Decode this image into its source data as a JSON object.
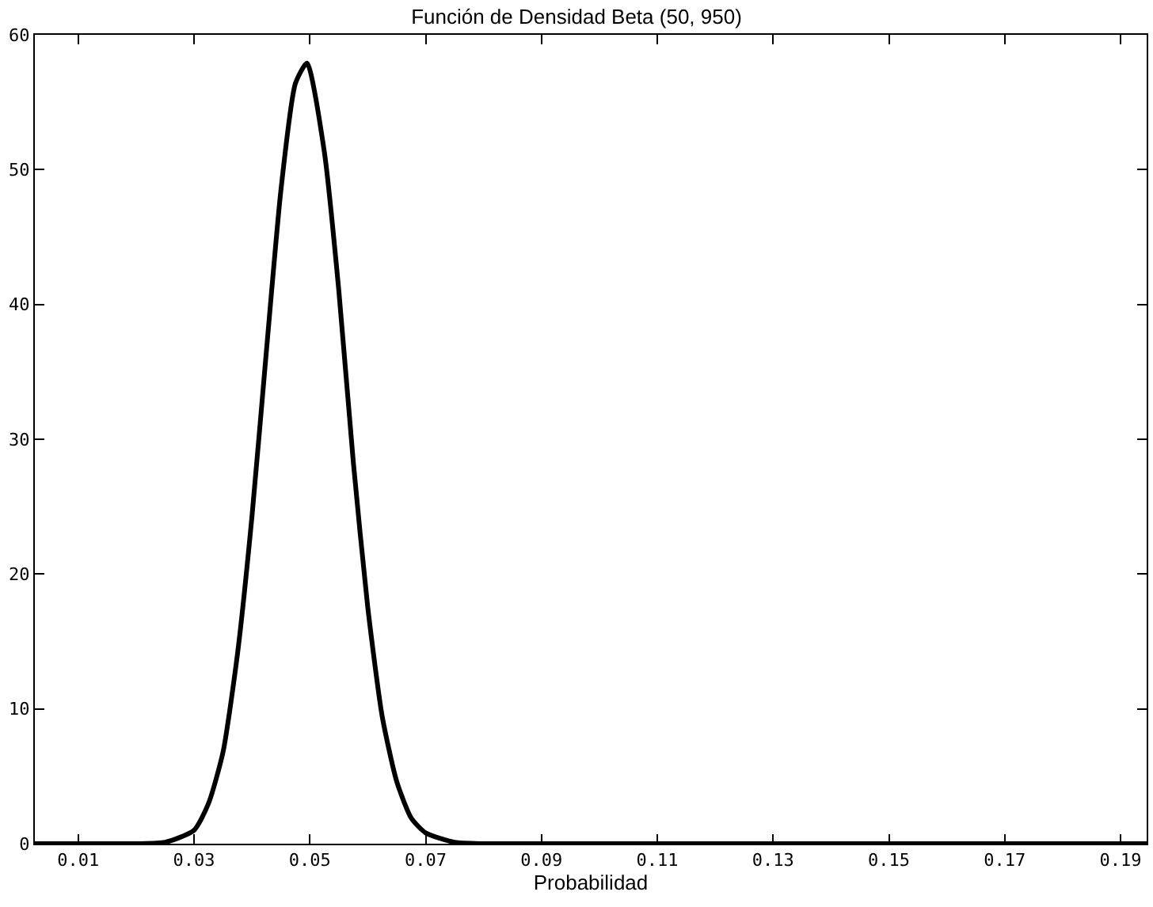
{
  "chart_data": {
    "type": "line",
    "title": "Función de Densidad Beta (50, 950)",
    "xlabel": "Probabilidad",
    "x": [
      0.0025,
      0.01,
      0.02,
      0.025,
      0.03,
      0.0325,
      0.035,
      0.0375,
      0.04,
      0.0425,
      0.045,
      0.0475,
      0.0495,
      0.0525,
      0.055,
      0.0575,
      0.06,
      0.0625,
      0.065,
      0.0675,
      0.07,
      0.075,
      0.08,
      0.09,
      0.1,
      0.12,
      0.15,
      0.1945
    ],
    "series": [
      {
        "color": "#000000",
        "values": [
          0,
          0,
          0,
          0.1,
          1.0,
          3.0,
          6.8,
          14.1,
          24.3,
          36.6,
          48.5,
          56.4,
          57.9,
          51.3,
          41.0,
          28.3,
          17.5,
          9.4,
          4.6,
          1.9,
          0.8,
          0.1,
          0,
          0,
          0,
          0,
          0,
          0
        ]
      }
    ],
    "xlim": [
      0.0025,
      0.1945
    ],
    "xticks": [
      0.01,
      0.03,
      0.05,
      0.07,
      0.09,
      0.11,
      0.13,
      0.15,
      0.17,
      0.19
    ],
    "ylim": [
      0,
      60
    ],
    "yticks": [
      0,
      10,
      20,
      30,
      40,
      50,
      60
    ],
    "marker": "none",
    "line_style": "solid"
  }
}
